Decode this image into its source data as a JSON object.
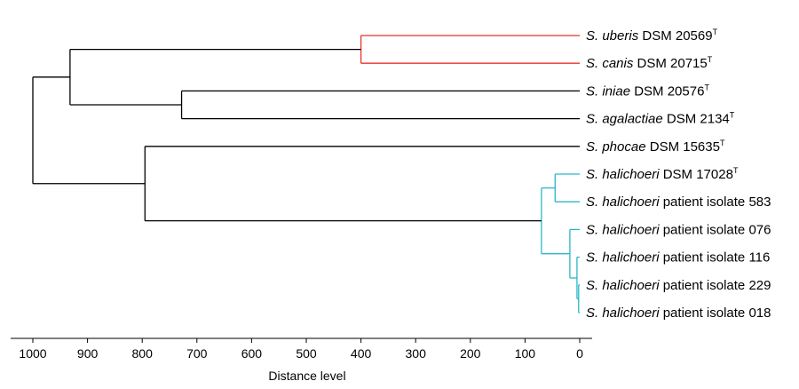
{
  "axis": {
    "title": "Distance level",
    "ticks": [
      1000,
      900,
      800,
      700,
      600,
      500,
      400,
      300,
      200,
      100,
      0
    ]
  },
  "colors": {
    "default": "#000000",
    "red_cluster": "#e8322b",
    "cyan_cluster": "#2bb6c9"
  },
  "leaves": [
    {
      "id": "uberis",
      "species": "S. uberis",
      "rest": " DSM 20569",
      "sup": "T"
    },
    {
      "id": "canis",
      "species": "S. canis",
      "rest": " DSM 20715",
      "sup": "T"
    },
    {
      "id": "iniae",
      "species": "S. iniae",
      "rest": " DSM 20576",
      "sup": "T"
    },
    {
      "id": "agalactiae",
      "species": "S. agalactiae",
      "rest": " DSM 2134",
      "sup": "T"
    },
    {
      "id": "phocae",
      "species": "S. phocae",
      "rest": " DSM 15635",
      "sup": "T"
    },
    {
      "id": "halichoeri_type",
      "species": "S. halichoeri",
      "rest": " DSM 17028",
      "sup": "T"
    },
    {
      "id": "iso583",
      "species": "S. halichoeri",
      "rest": " patient isolate 583",
      "sup": ""
    },
    {
      "id": "iso076",
      "species": "S. halichoeri",
      "rest": " patient isolate 076",
      "sup": ""
    },
    {
      "id": "iso116",
      "species": "S. halichoeri",
      "rest": " patient isolate 116",
      "sup": ""
    },
    {
      "id": "iso229",
      "species": "S. halichoeri",
      "rest": " patient isolate 229",
      "sup": ""
    },
    {
      "id": "iso018",
      "species": "S. halichoeri",
      "rest": " patient isolate 018",
      "sup": ""
    }
  ],
  "merges": [
    {
      "id": "m_red",
      "children": [
        "uberis",
        "canis"
      ],
      "height": 400,
      "color": "red_cluster"
    },
    {
      "id": "m_ia",
      "children": [
        "iniae",
        "agalactiae"
      ],
      "height": 728,
      "color": "default"
    },
    {
      "id": "m_top4",
      "children": [
        "m_red",
        "m_ia"
      ],
      "height": 932,
      "color": "default"
    },
    {
      "id": "m_hal1",
      "children": [
        "halichoeri_type",
        "iso583"
      ],
      "height": 45,
      "color": "cyan_cluster"
    },
    {
      "id": "m_hal_a",
      "children": [
        "iso229",
        "iso018"
      ],
      "height": 2,
      "color": "cyan_cluster"
    },
    {
      "id": "m_hal_b",
      "children": [
        "iso116",
        "m_hal_a"
      ],
      "height": 5,
      "color": "cyan_cluster"
    },
    {
      "id": "m_hal_c",
      "children": [
        "iso076",
        "m_hal_b"
      ],
      "height": 18,
      "color": "cyan_cluster"
    },
    {
      "id": "m_hal",
      "children": [
        "m_hal1",
        "m_hal_c"
      ],
      "height": 70,
      "color": "cyan_cluster"
    },
    {
      "id": "m_ph",
      "children": [
        "phocae",
        "m_hal"
      ],
      "height": 795,
      "color": "default"
    },
    {
      "id": "root",
      "children": [
        "m_top4",
        "m_ph"
      ],
      "height": 1000,
      "color": "default"
    }
  ]
}
